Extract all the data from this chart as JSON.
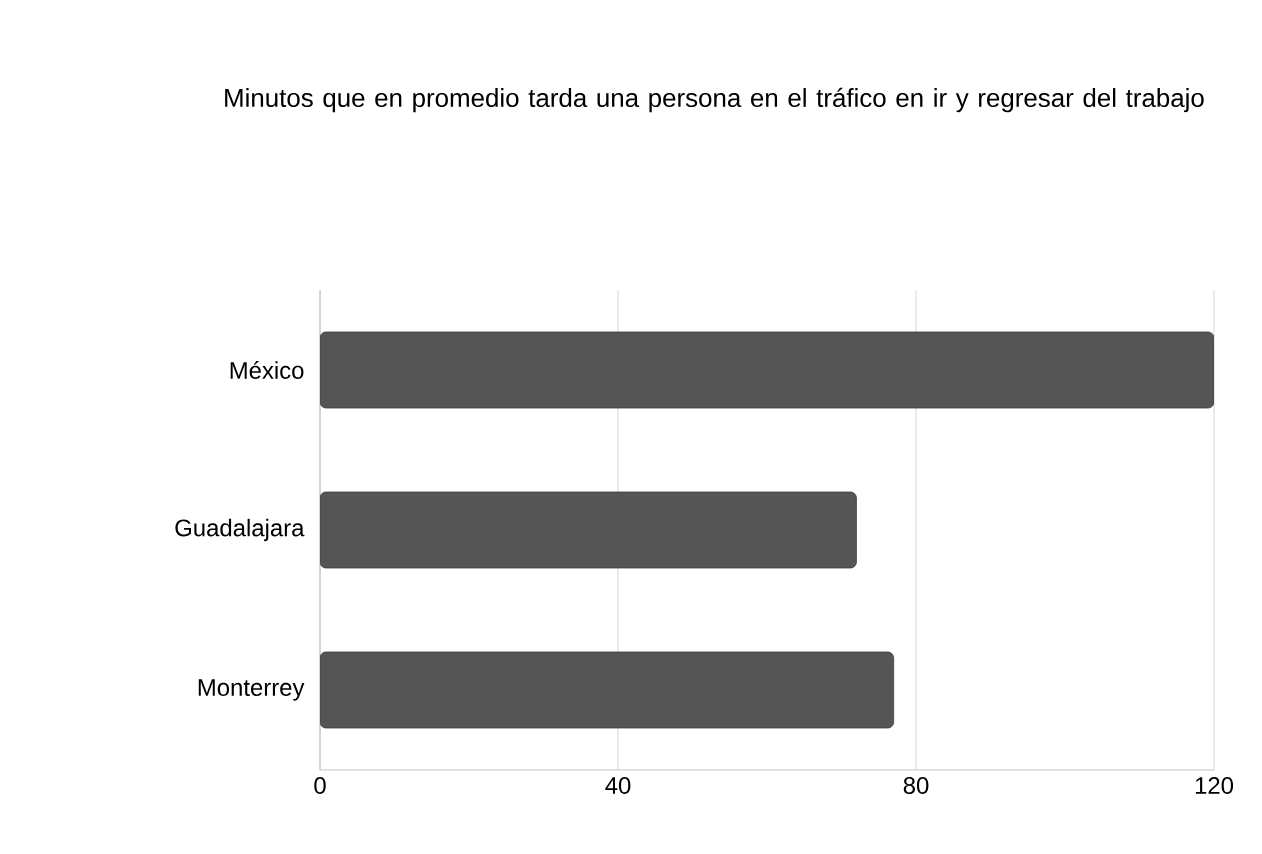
{
  "chart_data": {
    "type": "bar",
    "orientation": "horizontal",
    "title": "Minutos que en promedio tarda una persona en el tráfico en ir y regresar del trabajo",
    "categories": [
      "México",
      "Guadalajara",
      "Monterrey"
    ],
    "values": [
      120,
      72,
      77
    ],
    "color": "#555555",
    "xlim": [
      0,
      120
    ],
    "xticks": [
      0,
      40,
      80,
      120
    ],
    "grid": "x"
  }
}
